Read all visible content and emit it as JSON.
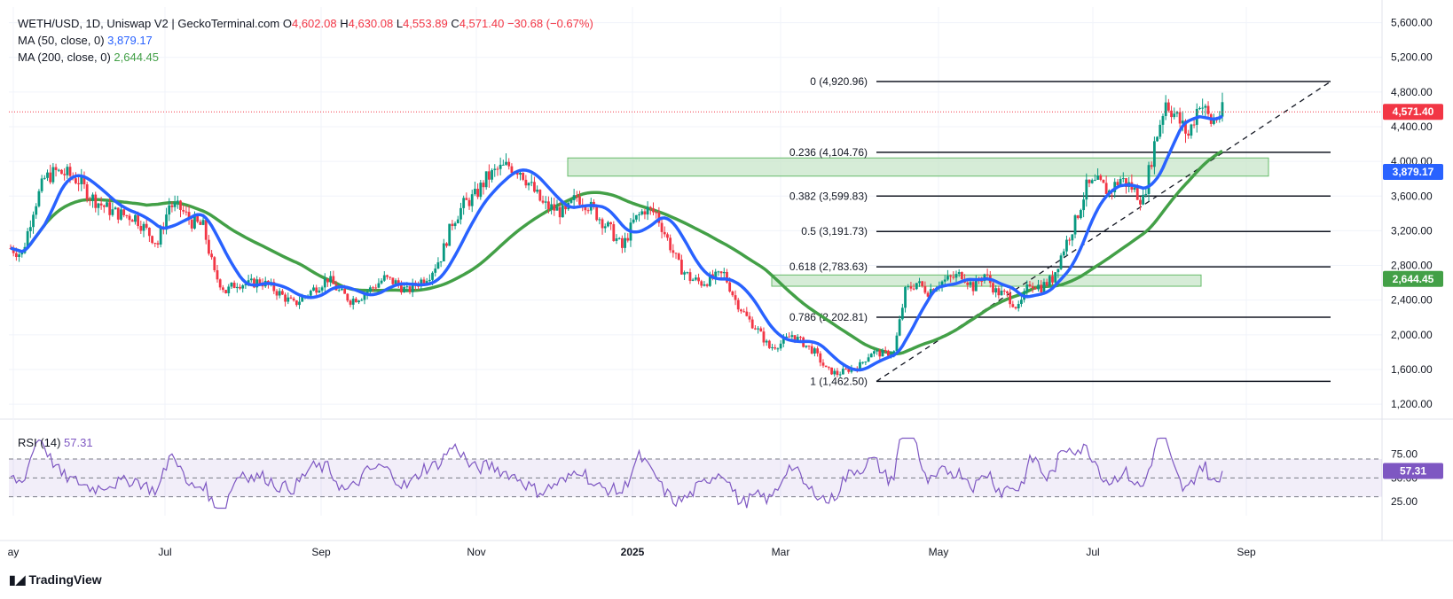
{
  "header": {
    "symbol": "WETH/USD, 1D, Uniswap V2 | GeckoTerminal.com",
    "open_label": "O",
    "open": "4,602.08",
    "high_label": "H",
    "high": "4,630.08",
    "low_label": "L",
    "low": "4,553.89",
    "close_label": "C",
    "close": "4,571.40",
    "change": "−30.68 (−0.67%)"
  },
  "indicators": {
    "ma50_label": "MA (50, close, 0)",
    "ma50_value": "3,879.17",
    "ma50_color": "#2962ff",
    "ma200_label": "MA (200, close, 0)",
    "ma200_value": "2,644.45",
    "ma200_color": "#43a047",
    "rsi_label": "RSI (14)",
    "rsi_value": "57.31",
    "rsi_color": "#7e57c2"
  },
  "branding": {
    "logo_text": "TradingView"
  },
  "chart_data": [
    {
      "type": "candlestick",
      "xlabel": "",
      "ylabel": "",
      "x_ticks": [
        "ay",
        "Jul",
        "Sep",
        "Nov",
        "2025",
        "Mar",
        "May",
        "Jul",
        "Sep"
      ],
      "y_ticks": [
        "5,600.00",
        "5,200.00",
        "4,800.00",
        "4,400.00",
        "4,000.00",
        "3,600.00",
        "3,200.00",
        "2,800.00",
        "2,400.00",
        "2,000.00",
        "1,600.00",
        "1,200.00"
      ],
      "ylim": [
        1160,
        5780
      ],
      "last_price": 4571.4,
      "last_price_label": "4,571.40",
      "ma50_last_label": "3,879.17",
      "ma200_last_label": "2,644.45",
      "colors": {
        "up": "#089981",
        "down": "#f23645",
        "ma50": "#2962ff",
        "ma200": "#43a047",
        "fib": "#131722",
        "zone": "#c8e6c9"
      },
      "price_series": [
        3000,
        2920,
        3450,
        3800,
        3880,
        3850,
        3780,
        3600,
        3500,
        3420,
        3380,
        3360,
        3200,
        3050,
        3500,
        3450,
        3300,
        3250,
        2700,
        2500,
        2600,
        2580,
        2620,
        2550,
        2450,
        2350,
        2450,
        2550,
        2650,
        2500,
        2400,
        2450,
        2550,
        2650,
        2600,
        2500,
        2600,
        2700,
        2900,
        3300,
        3500,
        3600,
        3800,
        3900,
        3950,
        3900,
        3700,
        3500,
        3450,
        3400,
        3600,
        3500,
        3350,
        3200,
        3000,
        3300,
        3450,
        3400,
        3100,
        2800,
        2650,
        2600,
        2650,
        2700,
        2400,
        2200,
        2050,
        1850,
        1900,
        2000,
        1900,
        1800,
        1600,
        1550,
        1600,
        1650,
        1800,
        1780,
        1800,
        2500,
        2600,
        2500,
        2600,
        2650,
        2700,
        2550,
        2700,
        2500,
        2450,
        2300,
        2600,
        2550,
        2650,
        3000,
        3300,
        3700,
        3750,
        3650,
        3800,
        3700,
        3550,
        4200,
        4700,
        4500,
        4300,
        4700,
        4450,
        4571
      ]
    },
    {
      "type": "fibonacci",
      "levels": [
        {
          "ratio": "0",
          "value": 4920.96,
          "label": "0 (4,920.96)"
        },
        {
          "ratio": "0.236",
          "value": 4104.76,
          "label": "0.236 (4,104.76)"
        },
        {
          "ratio": "0.382",
          "value": 3599.83,
          "label": "0.382 (3,599.83)"
        },
        {
          "ratio": "0.5",
          "value": 3191.73,
          "label": "0.5 (3,191.73)"
        },
        {
          "ratio": "0.618",
          "value": 2783.63,
          "label": "0.618 (2,783.63)"
        },
        {
          "ratio": "0.786",
          "value": 2202.81,
          "label": "0.786 (2,202.81)"
        },
        {
          "ratio": "1",
          "value": 1462.5,
          "label": "1 (1,462.50)"
        }
      ],
      "zones": [
        {
          "from": 3830,
          "to": 4040
        },
        {
          "from": 2560,
          "to": 2690
        }
      ]
    },
    {
      "type": "line",
      "name": "RSI (14)",
      "y_ticks": [
        "75.00",
        "50.00",
        "25.00"
      ],
      "ylim": [
        10,
        100
      ],
      "band": [
        30,
        70
      ],
      "midline": 50,
      "last_value": 57.31,
      "last_value_label": "57.31"
    }
  ]
}
